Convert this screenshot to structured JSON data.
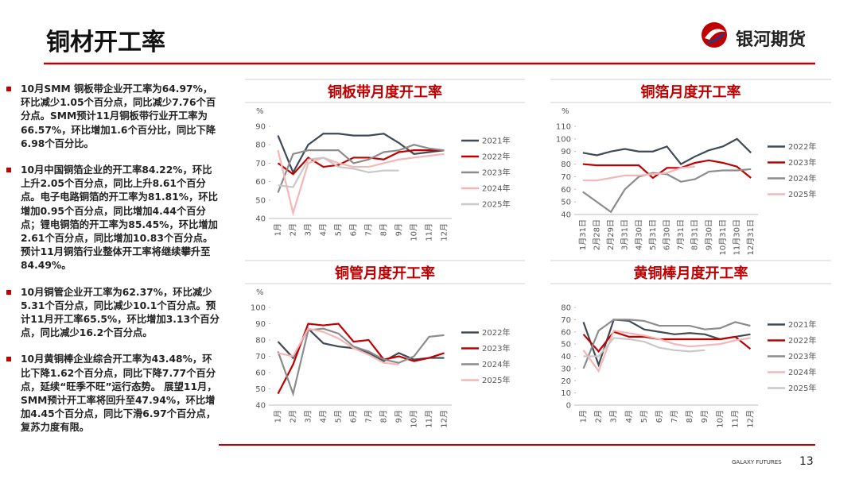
{
  "header": {
    "title": "铜材开工率",
    "logo": "银河期货"
  },
  "bullets": [
    "10月SMM 铜板带企业开工率为64.97%，环比减少1.05个百分点，同比减少7.76个百分点。SMM预计11月铜板带行业开工率为66.57%，环比增加1.6个百分比，同比下降6.98个百分比。",
    "10月中国铜箔企业的开工率84.22%，环比上升2.05个百分点，同比上升8.61个百分点。电子电路铜箔的开工率为81.81%，环比增加0.95个百分点，同比增加4.44个百分点；锂电铜箔的开工率为85.45%，环比增加2.61个百分点，同比增加10.83个百分点。预计11月铜箔行业整体开工率将继续攀升至84.49%。",
    "10月铜管企业开工率为62.37%，环比减少5.31个百分点，同比减少10.1个百分点。预计11月开工率65.5%，环比增加3.13个百分点，同比减少16.2个百分点。",
    "10月黄铜棒企业综合开工率为43.48%，环比下降1.62个百分点，同比下降7.77个百分点，延续“旺季不旺”运行态势。 展望11月，SMM预计开工率将回升至47.94%，环比增加4.45个百分点，同比下滑6.97个百分点，复苏力度有限。"
  ],
  "footer": {
    "brand": "GALAXY FUTURES",
    "page": "13"
  },
  "chart_data": [
    {
      "type": "line",
      "title": "铜板带月度开工率",
      "y_label": "%",
      "categories": [
        "1月",
        "2月",
        "3月",
        "4月",
        "5月",
        "6月",
        "7月",
        "8月",
        "9月",
        "10月",
        "11月",
        "12月"
      ],
      "ylim": [
        40,
        90
      ],
      "yticks": [
        40,
        50,
        60,
        70,
        80,
        90
      ],
      "legend": "right",
      "series": [
        {
          "name": "2021年",
          "color": "#404a55",
          "values": [
            85,
            65,
            80,
            86,
            86,
            85,
            85,
            86,
            81,
            75,
            76,
            77
          ]
        },
        {
          "name": "2022年",
          "color": "#c00000",
          "values": [
            70,
            64,
            73,
            68,
            69,
            73,
            73,
            72,
            76,
            77,
            77,
            77
          ]
        },
        {
          "name": "2023年",
          "color": "#8c8c8c",
          "values": [
            54,
            75,
            77,
            77,
            77,
            70,
            72,
            76,
            77,
            80,
            78,
            77
          ]
        },
        {
          "name": "2024年",
          "color": "#f4b6b6",
          "values": [
            77,
            43,
            70,
            73,
            70,
            68,
            68,
            70,
            72,
            73,
            74,
            75
          ]
        },
        {
          "name": "2025年",
          "color": "#c8c8c8",
          "values": [
            58,
            57,
            72,
            73,
            68,
            67,
            65,
            66,
            66,
            null,
            null,
            null
          ]
        }
      ]
    },
    {
      "type": "line",
      "title": "铜箔月度开工率",
      "y_label": "%",
      "categories": [
        "1月31日",
        "2月28日",
        "2月29日",
        "3月31日",
        "4月30日",
        "5月31日",
        "6月30日",
        "7月31日",
        "8月31日",
        "9月30日",
        "10月31日",
        "11月30日",
        "12月31日"
      ],
      "ylim": [
        40,
        110
      ],
      "yticks": [
        40,
        50,
        60,
        70,
        80,
        90,
        100,
        110
      ],
      "legend": "right",
      "series": [
        {
          "name": "2022年",
          "color": "#404a55",
          "values": [
            89,
            87,
            90,
            92,
            90,
            90,
            94,
            80,
            86,
            91,
            94,
            100,
            89
          ]
        },
        {
          "name": "2023年",
          "color": "#c00000",
          "values": [
            80,
            79,
            79,
            79,
            79,
            69,
            77,
            77,
            81,
            83,
            81,
            78,
            69
          ]
        },
        {
          "name": "2024年",
          "color": "#8c8c8c",
          "values": [
            58,
            50,
            42,
            60,
            70,
            73,
            72,
            66,
            68,
            74,
            75,
            75,
            76
          ]
        },
        {
          "name": "2025年",
          "color": "#f4b6b6",
          "values": [
            67,
            67,
            69,
            71,
            71,
            72,
            73,
            77,
            78,
            null,
            null,
            null,
            null
          ]
        }
      ]
    },
    {
      "type": "line",
      "title": "铜管月度开工率",
      "y_label": "%",
      "categories": [
        "1月",
        "2月",
        "3月",
        "4月",
        "5月",
        "6月",
        "7月",
        "8月",
        "9月",
        "10月",
        "11月",
        "12月"
      ],
      "ylim": [
        40,
        100
      ],
      "yticks": [
        40,
        50,
        60,
        70,
        80,
        90,
        100
      ],
      "legend": "right",
      "series": [
        {
          "name": "2022年",
          "color": "#404a55",
          "values": [
            79,
            69,
            87,
            78,
            76,
            75,
            72,
            67,
            72,
            68,
            69,
            69
          ]
        },
        {
          "name": "2023年",
          "color": "#c00000",
          "values": [
            47,
            65,
            90,
            89,
            90,
            79,
            80,
            68,
            70,
            67,
            69,
            72
          ]
        },
        {
          "name": "2024年",
          "color": "#8c8c8c",
          "values": [
            73,
            47,
            86,
            87,
            84,
            76,
            73,
            68,
            66,
            70,
            82,
            83
          ]
        },
        {
          "name": "2025年",
          "color": "#f4b6b6",
          "values": [
            72,
            70,
            87,
            85,
            81,
            75,
            71,
            66,
            65,
            null,
            null,
            null
          ]
        }
      ]
    },
    {
      "type": "line",
      "title": "黄铜棒月度开工率",
      "categories": [
        "1月",
        "2月",
        "3月",
        "4月",
        "5月",
        "6月",
        "7月",
        "8月",
        "9月",
        "10月",
        "11月",
        "12月"
      ],
      "ylim": [
        0,
        80
      ],
      "yticks": [
        0,
        10,
        20,
        30,
        40,
        50,
        60,
        70,
        80
      ],
      "legend": "right",
      "series": [
        {
          "name": "2021年",
          "color": "#404a55",
          "values": [
            68,
            33,
            70,
            69,
            62,
            60,
            58,
            59,
            58,
            54,
            56,
            58
          ]
        },
        {
          "name": "2022年",
          "color": "#c00000",
          "values": [
            58,
            44,
            60,
            56,
            56,
            54,
            54,
            54,
            54,
            54,
            56,
            46
          ]
        },
        {
          "name": "2023年",
          "color": "#8c8c8c",
          "values": [
            30,
            61,
            70,
            70,
            69,
            65,
            65,
            65,
            62,
            63,
            68,
            65
          ]
        },
        {
          "name": "2024年",
          "color": "#f4b6b6",
          "values": [
            45,
            28,
            61,
            59,
            57,
            54,
            50,
            48,
            49,
            50,
            53,
            55
          ]
        },
        {
          "name": "2025年",
          "color": "#c8c8c8",
          "values": [
            40,
            40,
            55,
            54,
            52,
            47,
            45,
            44,
            45,
            null,
            null,
            null
          ]
        }
      ]
    }
  ]
}
